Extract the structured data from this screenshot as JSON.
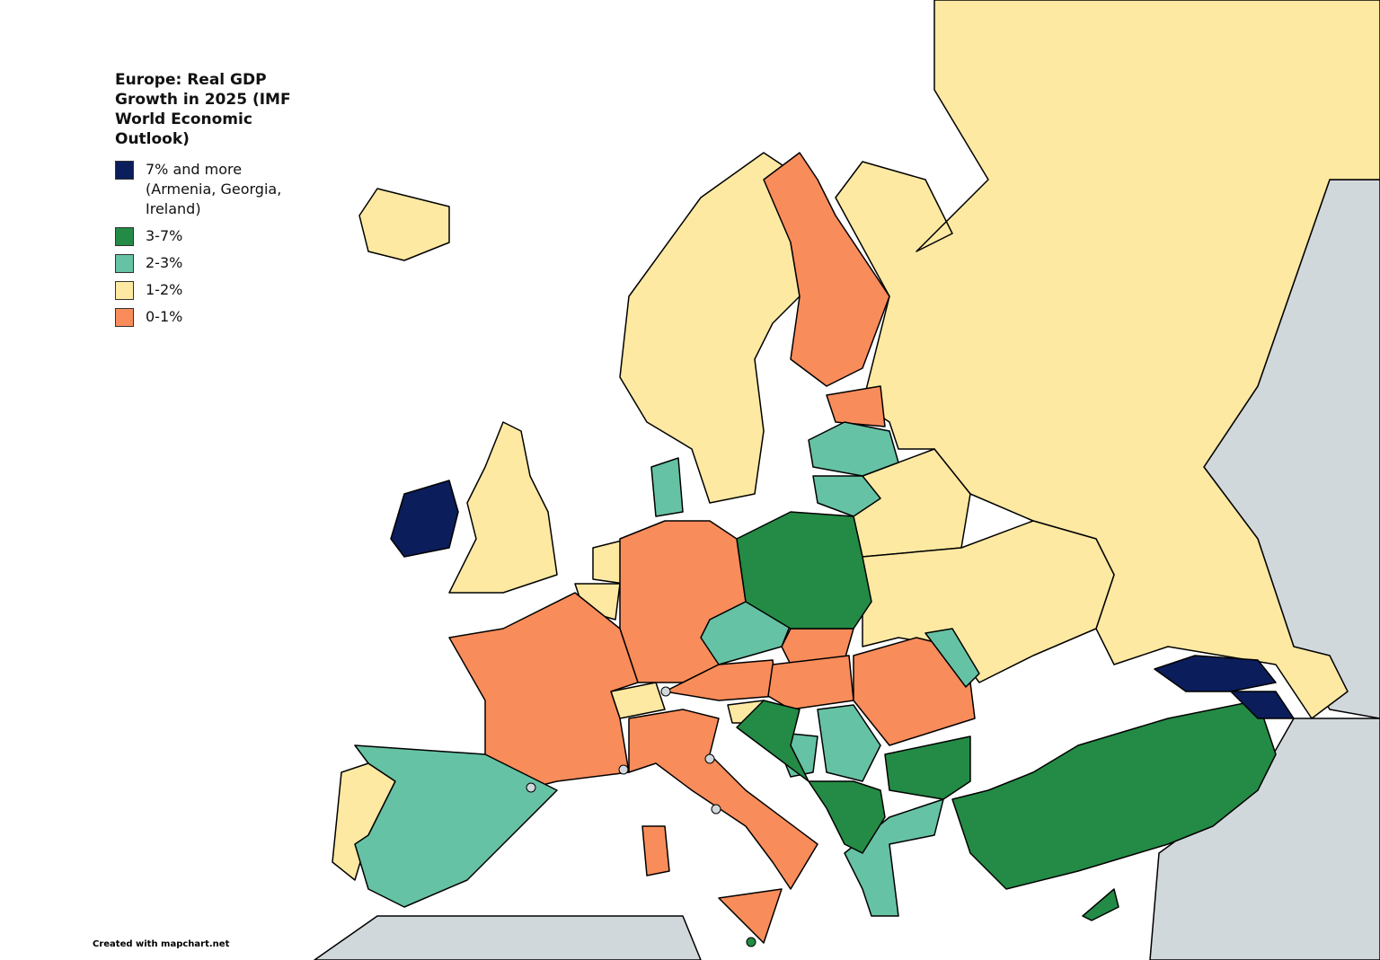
{
  "title": "Europe: Real GDP Growth in 2025 (IMF World Economic Outlook)",
  "legend": [
    {
      "label": "7% and more (Armenia, Georgia, Ireland)",
      "color": "#0b1d5b"
    },
    {
      "label": "3-7%",
      "color": "#238b45"
    },
    {
      "label": "2-3%",
      "color": "#66c2a4"
    },
    {
      "label": "1-2%",
      "color": "#fde9a2"
    },
    {
      "label": "0-1%",
      "color": "#f98c5b"
    }
  ],
  "credit": "Created with mapchart.net"
}
